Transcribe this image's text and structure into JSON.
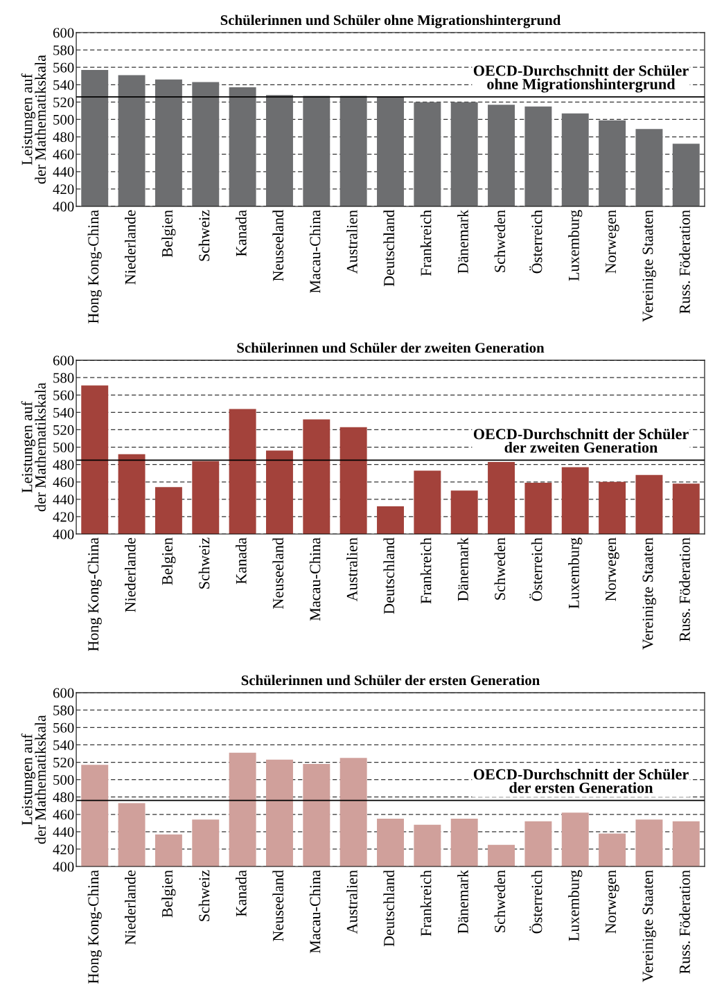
{
  "chart_data": [
    {
      "type": "bar",
      "title": "Schülerinnen und Schüler ohne Migrationshintergrund",
      "ylabel": "Leistungen auf\nder Mathematikskala",
      "categories": [
        "Hong Kong-China",
        "Niederlande",
        "Belgien",
        "Schweiz",
        "Kanada",
        "Neuseeland",
        "Macau-China",
        "Australien",
        "Deutschland",
        "Frankreich",
        "Dänemark",
        "Schweden",
        "Österreich",
        "Luxemburg",
        "Norwegen",
        "Vereinigte Staaten",
        "Russ. Föderation"
      ],
      "values": [
        557,
        551,
        546,
        543,
        537,
        528,
        527,
        527,
        526,
        520,
        520,
        517,
        515,
        507,
        499,
        489,
        472
      ],
      "color": "#6d6e70",
      "ylim": [
        400,
        600
      ],
      "yticks": [
        400,
        420,
        440,
        460,
        480,
        500,
        520,
        540,
        560,
        580,
        600
      ],
      "grid": "y",
      "ref_lines": [
        {
          "axis": "y",
          "value": 526,
          "label": "OECD-Durchschnitt der Schüler\nohne Migrationshintergrund",
          "color": "#000000",
          "line_style": "solid"
        }
      ]
    },
    {
      "type": "bar",
      "title": "Schülerinnen und Schüler der zweiten Generation",
      "ylabel": "Leistungen auf\nder Mathematikskala",
      "categories": [
        "Hong Kong-China",
        "Niederlande",
        "Belgien",
        "Schweiz",
        "Kanada",
        "Neuseeland",
        "Macau-China",
        "Australien",
        "Deutschland",
        "Frankreich",
        "Dänemark",
        "Schweden",
        "Österreich",
        "Luxemburg",
        "Norwegen",
        "Vereinigte Staaten",
        "Russ. Föderation"
      ],
      "values": [
        571,
        492,
        454,
        484,
        544,
        496,
        532,
        523,
        432,
        473,
        450,
        483,
        459,
        477,
        460,
        468,
        458
      ],
      "color": "#a3423b",
      "ylim": [
        400,
        600
      ],
      "yticks": [
        400,
        420,
        440,
        460,
        480,
        500,
        520,
        540,
        560,
        580,
        600
      ],
      "grid": "y",
      "ref_lines": [
        {
          "axis": "y",
          "value": 485,
          "label": "OECD-Durchschnitt der Schüler\nder zweiten Generation",
          "color": "#000000",
          "line_style": "solid"
        }
      ]
    },
    {
      "type": "bar",
      "title": "Schülerinnen und Schüler der ersten Generation",
      "ylabel": "Leistungen auf\nder Mathematikskala",
      "categories": [
        "Hong Kong-China",
        "Niederlande",
        "Belgien",
        "Schweiz",
        "Kanada",
        "Neuseeland",
        "Macau-China",
        "Australien",
        "Deutschland",
        "Frankreich",
        "Dänemark",
        "Schweden",
        "Österreich",
        "Luxemburg",
        "Norwegen",
        "Vereinigte Staaten",
        "Russ. Föderation"
      ],
      "values": [
        517,
        473,
        437,
        454,
        531,
        523,
        518,
        525,
        455,
        448,
        455,
        425,
        452,
        462,
        438,
        454,
        452
      ],
      "color": "#d0a09b",
      "ylim": [
        400,
        600
      ],
      "yticks": [
        400,
        420,
        440,
        460,
        480,
        500,
        520,
        540,
        560,
        580,
        600
      ],
      "grid": "y",
      "ref_lines": [
        {
          "axis": "y",
          "value": 476,
          "label": "OECD-Durchschnitt der Schüler\nder ersten Generation",
          "color": "#000000",
          "line_style": "solid"
        }
      ]
    }
  ]
}
